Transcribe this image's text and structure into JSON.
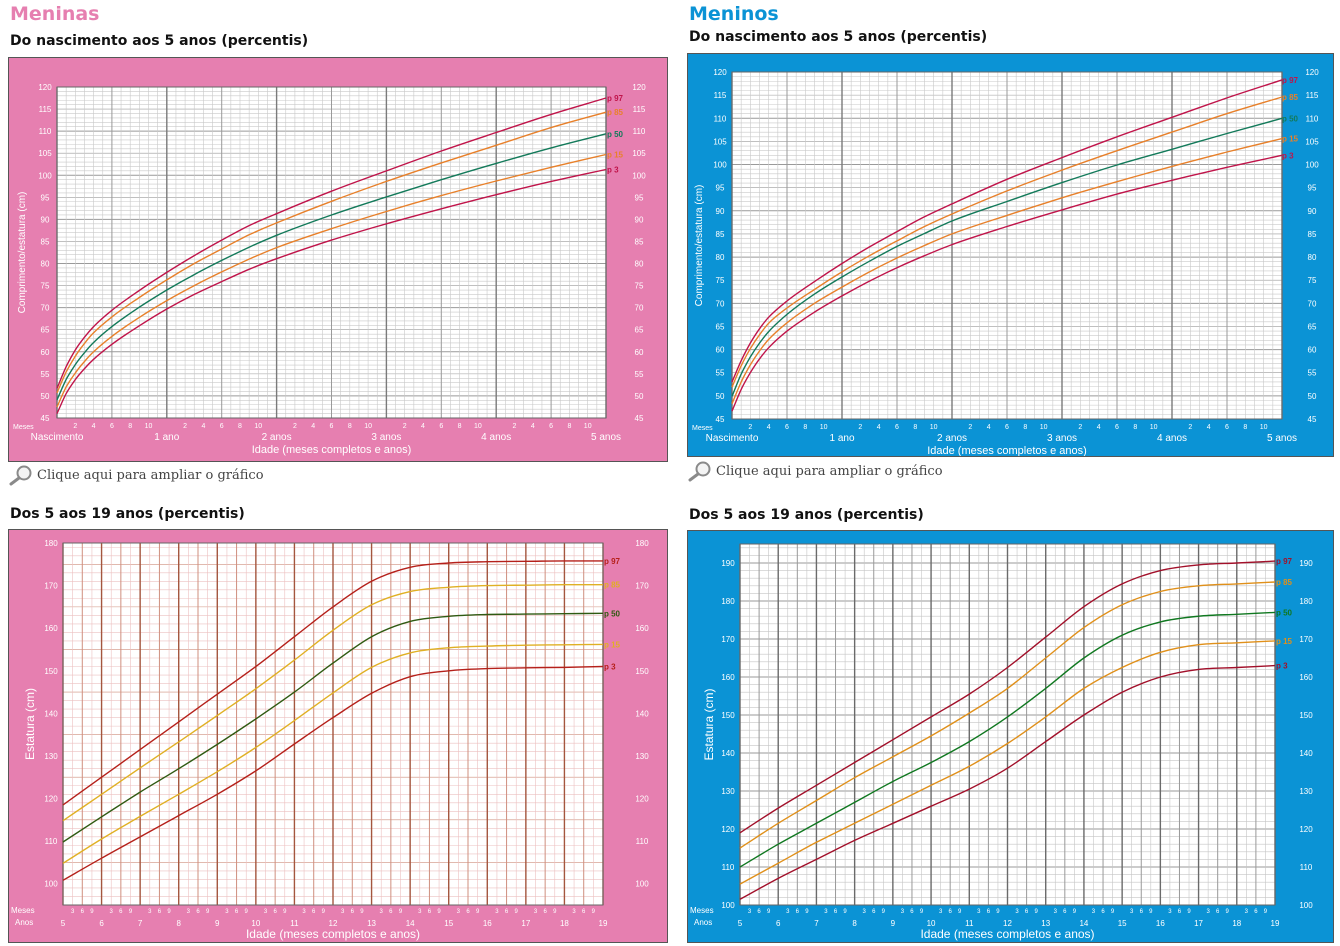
{
  "girls": {
    "title": "Meninas",
    "color": "#e67fb0",
    "enlarge_link": "Clique aqui para ampliar o gráfico",
    "infant": {
      "subtitle": "Do nascimento aos 5 anos (percentis)"
    },
    "child": {
      "subtitle": "Dos 5 aos 19 anos (percentis)"
    }
  },
  "boys": {
    "title": "Meninos",
    "color": "#0b93d5",
    "enlarge_link": "Clique aqui para ampliar o gráfico",
    "infant": {
      "subtitle": "Do nascimento aos 5 anos (percentis)"
    },
    "child": {
      "subtitle": "Dos 5 aos 19 anos (percentis)"
    }
  },
  "chart_data": [
    {
      "id": "girls-infant",
      "type": "line",
      "ylabel": "Comprimento/estatura (cm)",
      "xlabel": "Idade (meses completos e anos)",
      "months_label": "Meses",
      "month_ticks": [
        "2",
        "4",
        "6",
        "8",
        "10"
      ],
      "year_labels": [
        "Nascimento",
        "1 ano",
        "2 anos",
        "3 anos",
        "4 anos",
        "5 anos"
      ],
      "xlim": [
        0,
        60
      ],
      "ylim": [
        45,
        120
      ],
      "yticks": [
        45,
        50,
        55,
        60,
        65,
        70,
        75,
        80,
        85,
        90,
        95,
        100,
        105,
        110,
        115,
        120
      ],
      "x": [
        0,
        1,
        2,
        3,
        4,
        6,
        9,
        12,
        15,
        18,
        21,
        24,
        30,
        36,
        42,
        48,
        54,
        60
      ],
      "series": [
        {
          "name": "p 97",
          "color": "#c0144a",
          "values": [
            51.7,
            56.6,
            60.4,
            63.3,
            65.7,
            69.4,
            73.9,
            78.0,
            81.8,
            85.3,
            88.6,
            91.3,
            96.4,
            101.0,
            105.5,
            109.7,
            113.8,
            117.5
          ]
        },
        {
          "name": "p 85",
          "color": "#e8802a",
          "values": [
            50.7,
            55.4,
            59.0,
            61.9,
            64.3,
            67.9,
            72.3,
            76.3,
            80.0,
            83.3,
            86.5,
            89.2,
            94.1,
            98.6,
            102.8,
            106.8,
            110.8,
            114.3
          ]
        },
        {
          "name": "p 50",
          "color": "#137a5a",
          "values": [
            49.1,
            53.7,
            57.1,
            59.8,
            62.1,
            65.7,
            70.1,
            74.0,
            77.5,
            80.7,
            83.7,
            86.4,
            91.0,
            95.1,
            99.0,
            102.7,
            106.2,
            109.4
          ]
        },
        {
          "name": "p 15",
          "color": "#e8802a",
          "values": [
            47.5,
            52.0,
            55.2,
            57.8,
            60.0,
            63.5,
            67.8,
            71.6,
            75.0,
            78.1,
            81.0,
            83.6,
            87.9,
            91.8,
            95.4,
            98.7,
            101.8,
            104.7
          ]
        },
        {
          "name": "p 3",
          "color": "#c0144a",
          "values": [
            46.0,
            50.5,
            53.7,
            56.2,
            58.3,
            61.7,
            65.9,
            69.7,
            73.0,
            75.9,
            78.7,
            81.1,
            85.3,
            89.0,
            92.4,
            95.6,
            98.6,
            101.3
          ]
        }
      ]
    },
    {
      "id": "boys-infant",
      "type": "line",
      "ylabel": "Comprimento/estatura (cm)",
      "xlabel": "Idade (meses completos e anos)",
      "months_label": "Meses",
      "month_ticks": [
        "2",
        "4",
        "6",
        "8",
        "10"
      ],
      "year_labels": [
        "Nascimento",
        "1 ano",
        "2 anos",
        "3 anos",
        "4 anos",
        "5 anos"
      ],
      "xlim": [
        0,
        60
      ],
      "ylim": [
        45,
        120
      ],
      "yticks": [
        45,
        50,
        55,
        60,
        65,
        70,
        75,
        80,
        85,
        90,
        95,
        100,
        105,
        110,
        115,
        120
      ],
      "x": [
        0,
        1,
        2,
        3,
        4,
        6,
        9,
        12,
        15,
        18,
        21,
        24,
        30,
        36,
        42,
        48,
        54,
        60
      ],
      "series": [
        {
          "name": "p 97",
          "color": "#c0144a",
          "values": [
            53.0,
            57.6,
            61.4,
            64.5,
            67.0,
            70.5,
            74.7,
            78.6,
            82.2,
            85.5,
            88.7,
            91.5,
            96.8,
            101.5,
            106.0,
            110.2,
            114.4,
            118.3
          ]
        },
        {
          "name": "p 85",
          "color": "#e8802a",
          "values": [
            51.9,
            56.5,
            60.2,
            63.2,
            65.7,
            69.0,
            73.0,
            76.8,
            80.3,
            83.5,
            86.6,
            89.3,
            94.3,
            98.8,
            103.0,
            107.0,
            111.0,
            114.6
          ]
        },
        {
          "name": "p 50",
          "color": "#137a5a",
          "values": [
            49.9,
            54.7,
            58.4,
            61.4,
            63.9,
            67.6,
            72.0,
            75.7,
            79.1,
            82.3,
            85.1,
            87.8,
            92.0,
            96.1,
            99.9,
            103.3,
            106.7,
            110.0
          ]
        },
        {
          "name": "p 15",
          "color": "#e8802a",
          "values": [
            48.3,
            53.0,
            56.7,
            59.7,
            62.2,
            65.8,
            70.0,
            73.5,
            76.8,
            79.8,
            82.5,
            85.0,
            89.0,
            92.8,
            96.3,
            99.6,
            102.7,
            105.6
          ]
        },
        {
          "name": "p 3",
          "color": "#c0144a",
          "values": [
            46.7,
            51.4,
            55.0,
            58.0,
            60.4,
            64.0,
            68.1,
            71.6,
            74.8,
            77.7,
            80.3,
            82.7,
            86.6,
            90.2,
            93.6,
            96.6,
            99.4,
            102.0
          ]
        }
      ]
    },
    {
      "id": "girls-child",
      "type": "line",
      "ylabel": "Estatura (cm)",
      "xlabel": "Idade (meses completos e anos)",
      "months_label": "Meses",
      "years_label": "Anos",
      "month_ticks": [
        "3",
        "6",
        "9"
      ],
      "year_ticks": [
        "5",
        "6",
        "7",
        "8",
        "9",
        "10",
        "11",
        "12",
        "13",
        "14",
        "15",
        "16",
        "17",
        "18",
        "19"
      ],
      "xlim": [
        5,
        19
      ],
      "ylim": [
        95,
        180
      ],
      "yticks": [
        100,
        110,
        120,
        130,
        140,
        150,
        160,
        170,
        180
      ],
      "x": [
        5,
        6,
        7,
        8,
        9,
        10,
        11,
        12,
        13,
        14,
        15,
        16,
        17,
        18,
        19
      ],
      "series": [
        {
          "name": "p 97",
          "color": "#b5201a",
          "values": [
            118.5,
            125.0,
            131.5,
            138.0,
            144.5,
            151.0,
            158.0,
            165.0,
            171.0,
            174.3,
            175.3,
            175.6,
            175.7,
            175.8,
            175.8
          ]
        },
        {
          "name": "p 85",
          "color": "#e0b024",
          "values": [
            114.8,
            121.0,
            127.2,
            133.3,
            139.5,
            145.8,
            152.5,
            159.5,
            165.5,
            168.6,
            169.6,
            170.0,
            170.1,
            170.2,
            170.2
          ]
        },
        {
          "name": "p 50",
          "color": "#2f5a12",
          "values": [
            109.8,
            115.7,
            121.5,
            127.0,
            132.7,
            138.7,
            145.0,
            151.8,
            158.0,
            161.6,
            162.8,
            163.2,
            163.3,
            163.4,
            163.5
          ]
        },
        {
          "name": "p 15",
          "color": "#e0b024",
          "values": [
            104.8,
            110.5,
            115.8,
            121.0,
            126.3,
            132.0,
            138.3,
            144.8,
            150.8,
            154.2,
            155.4,
            155.8,
            156.0,
            156.1,
            156.2
          ]
        },
        {
          "name": "p 3",
          "color": "#b5201a",
          "values": [
            100.8,
            106.0,
            111.0,
            116.0,
            121.0,
            126.5,
            132.8,
            139.0,
            144.7,
            148.6,
            150.0,
            150.5,
            150.7,
            150.8,
            151.0
          ]
        }
      ]
    },
    {
      "id": "boys-child",
      "type": "line",
      "ylabel": "Estatura (cm)",
      "xlabel": "Idade (meses completos e anos)",
      "months_label": "Meses",
      "years_label": "Anos",
      "month_ticks": [
        "3",
        "6",
        "9"
      ],
      "year_ticks": [
        "5",
        "6",
        "7",
        "8",
        "9",
        "10",
        "11",
        "12",
        "13",
        "14",
        "15",
        "16",
        "17",
        "18",
        "19"
      ],
      "xlim": [
        5,
        19
      ],
      "ylim": [
        100,
        195
      ],
      "yticks": [
        100,
        110,
        120,
        130,
        140,
        150,
        160,
        170,
        180,
        190
      ],
      "x": [
        5,
        6,
        7,
        8,
        9,
        10,
        11,
        12,
        13,
        14,
        15,
        16,
        17,
        18,
        19
      ],
      "series": [
        {
          "name": "p 97",
          "color": "#a2102a",
          "values": [
            119.0,
            125.5,
            131.5,
            137.5,
            143.5,
            149.5,
            155.5,
            162.5,
            170.5,
            178.5,
            184.5,
            188.0,
            189.5,
            190.0,
            190.5
          ]
        },
        {
          "name": "p 85",
          "color": "#e0901a",
          "values": [
            115.0,
            121.5,
            127.5,
            133.5,
            139.0,
            144.5,
            150.5,
            157.0,
            165.0,
            173.0,
            179.0,
            182.5,
            184.0,
            184.5,
            185.0
          ]
        },
        {
          "name": "p 50",
          "color": "#107820",
          "values": [
            110.0,
            116.0,
            121.5,
            127.0,
            132.5,
            137.5,
            143.0,
            149.5,
            157.0,
            165.0,
            171.0,
            174.5,
            176.0,
            176.5,
            177.0
          ]
        },
        {
          "name": "p 15",
          "color": "#e0901a",
          "values": [
            105.5,
            111.0,
            116.5,
            121.5,
            126.5,
            131.5,
            136.5,
            142.5,
            149.5,
            157.0,
            162.5,
            166.5,
            168.5,
            169.0,
            169.5
          ]
        },
        {
          "name": "p 3",
          "color": "#a2102a",
          "values": [
            101.5,
            107.0,
            112.0,
            117.0,
            121.5,
            126.0,
            130.5,
            136.0,
            143.0,
            150.0,
            156.0,
            160.0,
            162.0,
            162.5,
            163.0
          ]
        }
      ]
    }
  ]
}
